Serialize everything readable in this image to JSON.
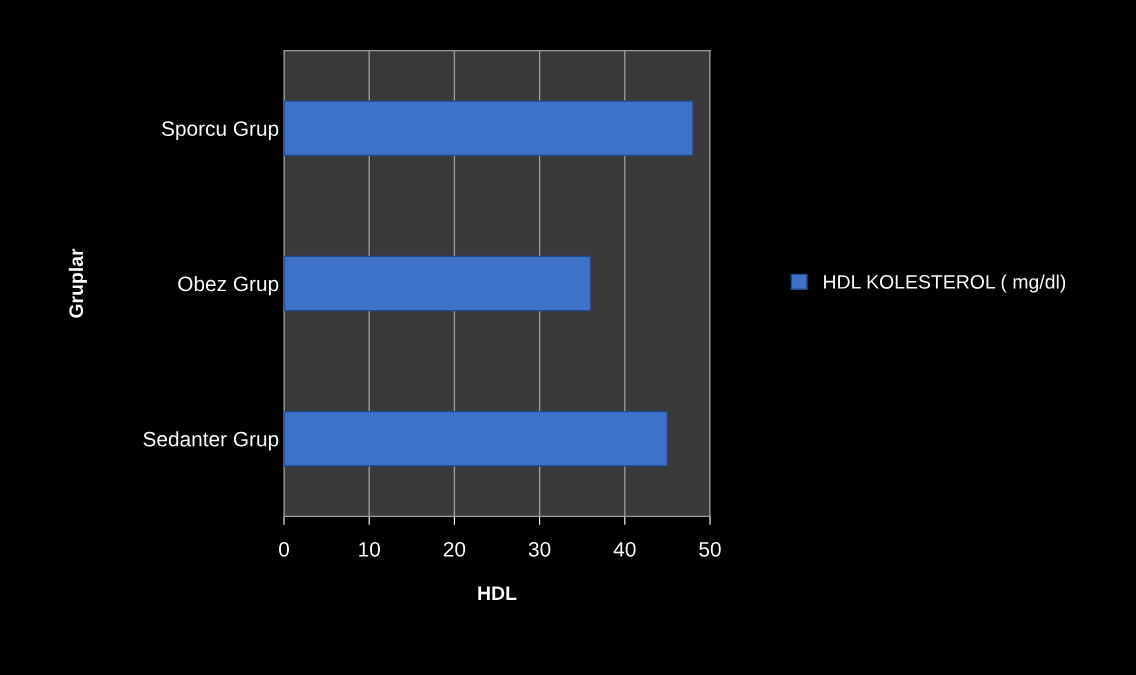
{
  "chart_data": {
    "type": "bar",
    "orientation": "horizontal",
    "xlabel": "HDL",
    "ylabel": "Gruplar",
    "categories": [
      "Sporcu Grup",
      "Obez Grup",
      "Sedanter Grup"
    ],
    "series": [
      {
        "name": "HDL KOLESTEROL ( mg/dl)",
        "color": "#3d72c8",
        "values": [
          48,
          36,
          45
        ]
      }
    ],
    "xlim": [
      0,
      50
    ],
    "xticks": [
      0,
      10,
      20,
      30,
      40,
      50
    ],
    "grid": "x",
    "legend": "right"
  }
}
